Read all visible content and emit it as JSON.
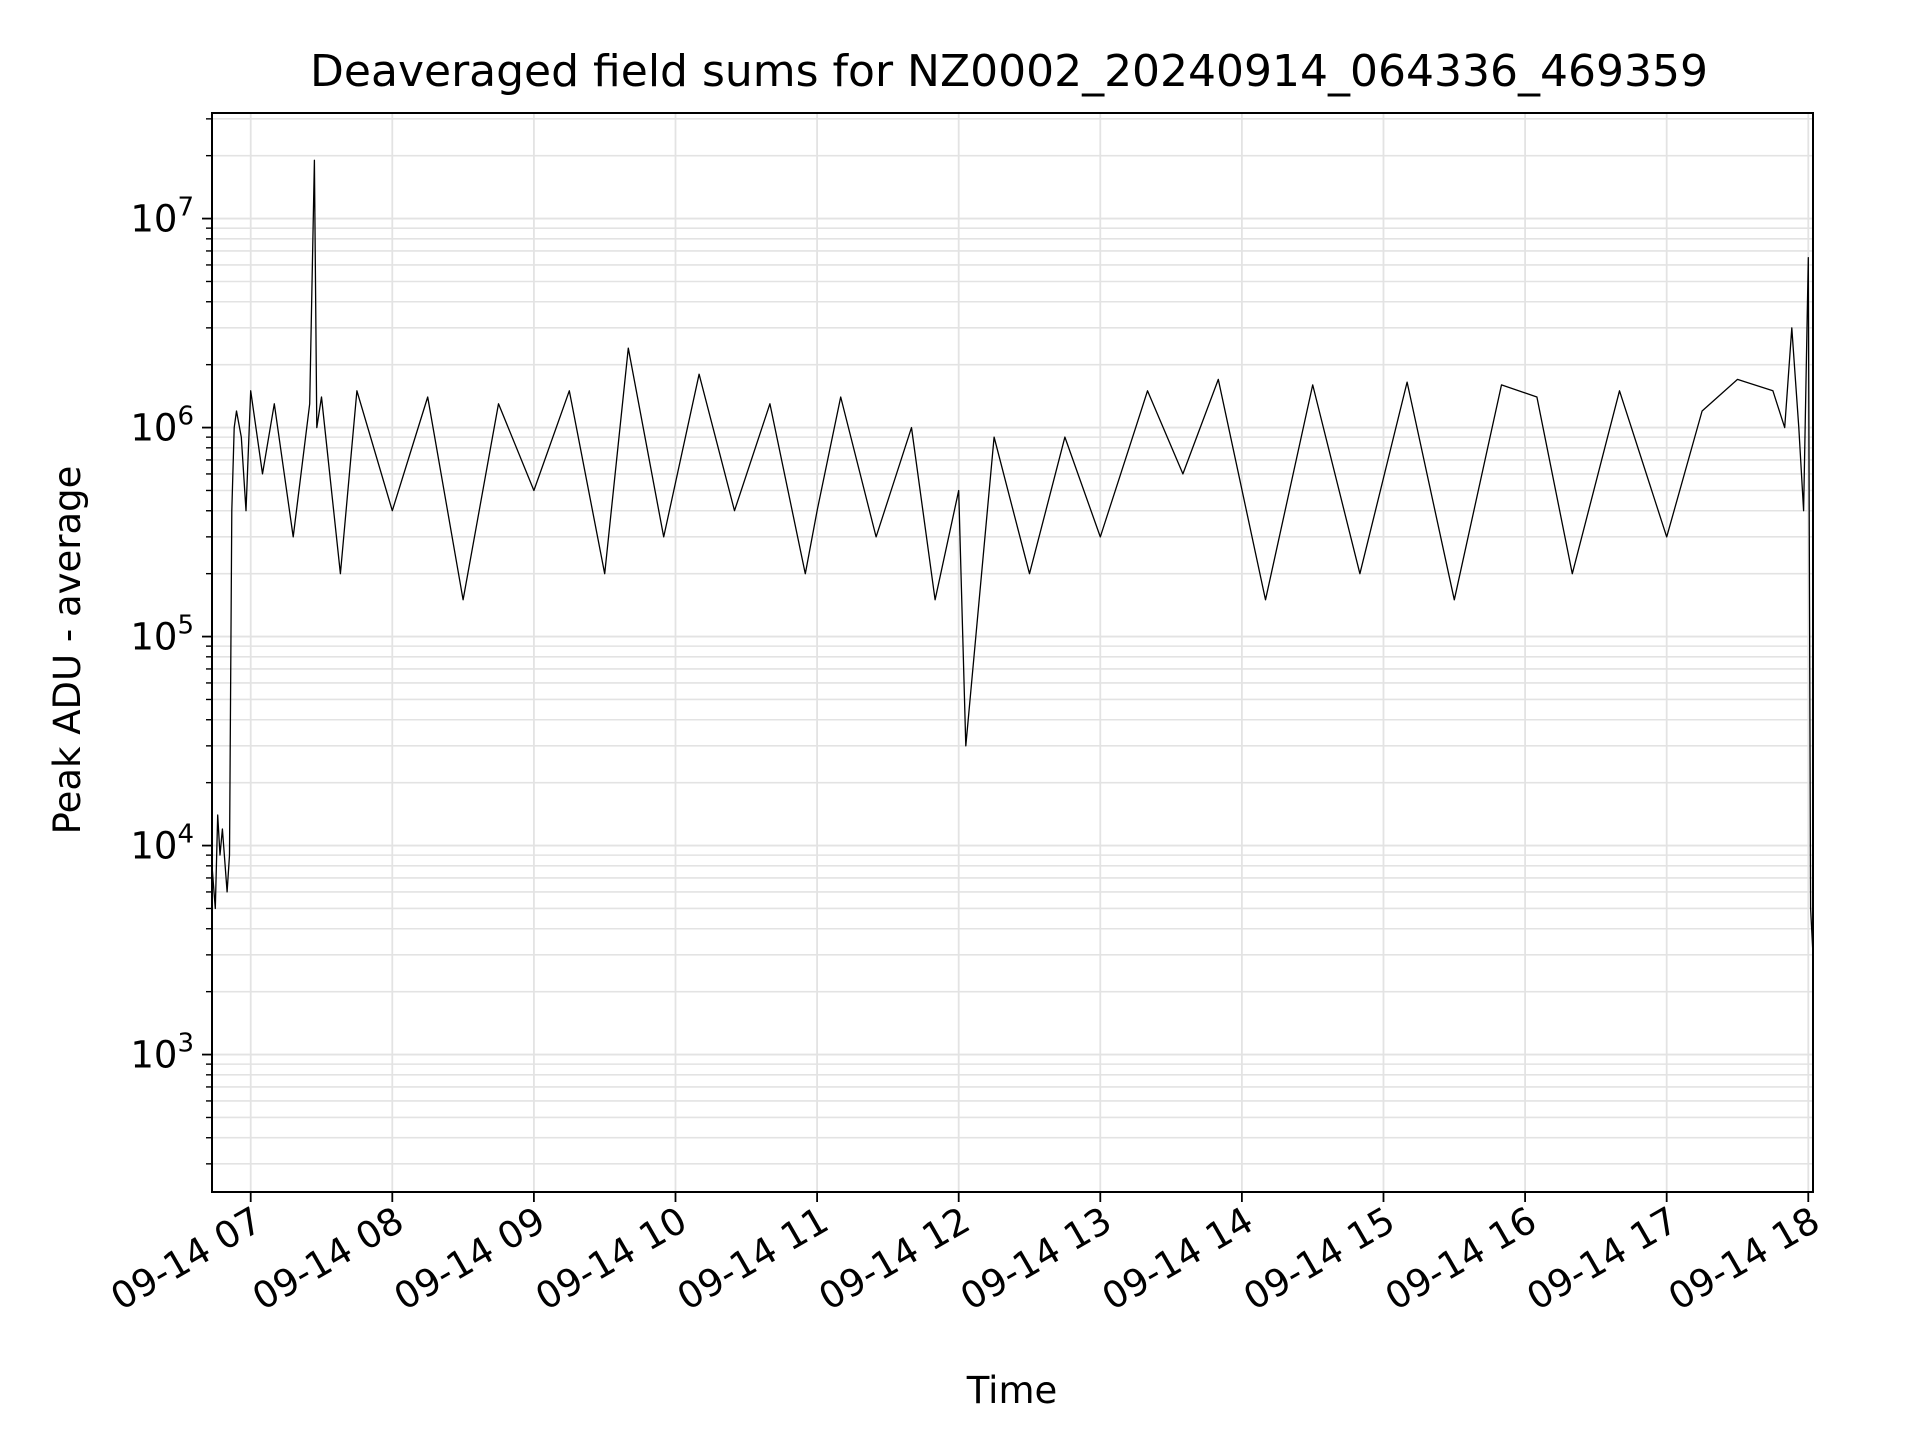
{
  "chart_data": {
    "type": "line",
    "title": "Deaveraged field sums for NZ0002_20240914_064336_469359",
    "xlabel": "Time",
    "ylabel": "Peak ADU - average",
    "yscale": "log",
    "ylim": [
      220,
      32000000
    ],
    "xlim": [
      "2024-09-14 06:43:36",
      "2024-09-14 18:02:00"
    ],
    "grid": true,
    "colors": {
      "line": "#000000",
      "grid": "#e3e3e3",
      "axes": "#000000"
    },
    "x_ticks": [
      {
        "t": "2024-09-14 07:00",
        "label": "09-14 07"
      },
      {
        "t": "2024-09-14 08:00",
        "label": "09-14 08"
      },
      {
        "t": "2024-09-14 09:00",
        "label": "09-14 09"
      },
      {
        "t": "2024-09-14 10:00",
        "label": "09-14 10"
      },
      {
        "t": "2024-09-14 11:00",
        "label": "09-14 11"
      },
      {
        "t": "2024-09-14 12:00",
        "label": "09-14 12"
      },
      {
        "t": "2024-09-14 13:00",
        "label": "09-14 13"
      },
      {
        "t": "2024-09-14 14:00",
        "label": "09-14 14"
      },
      {
        "t": "2024-09-14 15:00",
        "label": "09-14 15"
      },
      {
        "t": "2024-09-14 16:00",
        "label": "09-14 16"
      },
      {
        "t": "2024-09-14 17:00",
        "label": "09-14 17"
      },
      {
        "t": "2024-09-14 18:00",
        "label": "09-14 18"
      }
    ],
    "y_ticks": [
      {
        "v": 1000,
        "base": "10",
        "exp": "3"
      },
      {
        "v": 10000,
        "base": "10",
        "exp": "4"
      },
      {
        "v": 100000,
        "base": "10",
        "exp": "5"
      },
      {
        "v": 1000000,
        "base": "10",
        "exp": "6"
      },
      {
        "v": 10000000,
        "base": "10",
        "exp": "7"
      }
    ],
    "series": [
      {
        "color": "#000000",
        "x": [
          "2024-09-14 06:43:36",
          "2024-09-14 06:45",
          "2024-09-14 06:46",
          "2024-09-14 06:47",
          "2024-09-14 06:48",
          "2024-09-14 06:50",
          "2024-09-14 06:51",
          "2024-09-14 06:52",
          "2024-09-14 06:53",
          "2024-09-14 06:54",
          "2024-09-14 06:56",
          "2024-09-14 06:58",
          "2024-09-14 07:00",
          "2024-09-14 07:05",
          "2024-09-14 07:10",
          "2024-09-14 07:18",
          "2024-09-14 07:25",
          "2024-09-14 07:27",
          "2024-09-14 07:28",
          "2024-09-14 07:30",
          "2024-09-14 07:38",
          "2024-09-14 07:45",
          "2024-09-14 08:00",
          "2024-09-14 08:15",
          "2024-09-14 08:30",
          "2024-09-14 08:45",
          "2024-09-14 09:00",
          "2024-09-14 09:15",
          "2024-09-14 09:30",
          "2024-09-14 09:40",
          "2024-09-14 09:55",
          "2024-09-14 10:10",
          "2024-09-14 10:25",
          "2024-09-14 10:40",
          "2024-09-14 10:55",
          "2024-09-14 11:00",
          "2024-09-14 11:10",
          "2024-09-14 11:25",
          "2024-09-14 11:40",
          "2024-09-14 11:50",
          "2024-09-14 12:00",
          "2024-09-14 12:03",
          "2024-09-14 12:15",
          "2024-09-14 12:30",
          "2024-09-14 12:45",
          "2024-09-14 13:00",
          "2024-09-14 13:15",
          "2024-09-14 13:20",
          "2024-09-14 13:35",
          "2024-09-14 13:50",
          "2024-09-14 14:10",
          "2024-09-14 14:30",
          "2024-09-14 14:50",
          "2024-09-14 15:10",
          "2024-09-14 15:30",
          "2024-09-14 15:50",
          "2024-09-14 16:05",
          "2024-09-14 16:20",
          "2024-09-14 16:40",
          "2024-09-14 17:00",
          "2024-09-14 17:15",
          "2024-09-14 17:30",
          "2024-09-14 17:45",
          "2024-09-14 17:50",
          "2024-09-14 17:53",
          "2024-09-14 17:56",
          "2024-09-14 17:58",
          "2024-09-14 18:00",
          "2024-09-14 18:01",
          "2024-09-14 18:02"
        ],
        "y": [
          8000,
          5000,
          14000,
          9000,
          12000,
          6000,
          9000,
          400000,
          1000000,
          1200000,
          900000,
          400000,
          1500000,
          600000,
          1300000,
          300000,
          1300000,
          19000000,
          1000000,
          1400000,
          200000,
          1500000,
          400000,
          1400000,
          150000,
          1300000,
          500000,
          1500000,
          200000,
          2400000,
          300000,
          1800000,
          400000,
          1300000,
          200000,
          400000,
          1400000,
          300000,
          1000000,
          150000,
          500000,
          30000,
          900000,
          200000,
          900000,
          300000,
          1000000,
          1500000,
          600000,
          1700000,
          150000,
          1600000,
          200000,
          1650000,
          150000,
          1600000,
          1400000,
          200000,
          1500000,
          300000,
          1200000,
          1700000,
          1500000,
          1000000,
          3000000,
          1000000,
          400000,
          6500000,
          5000,
          3000
        ]
      }
    ]
  }
}
